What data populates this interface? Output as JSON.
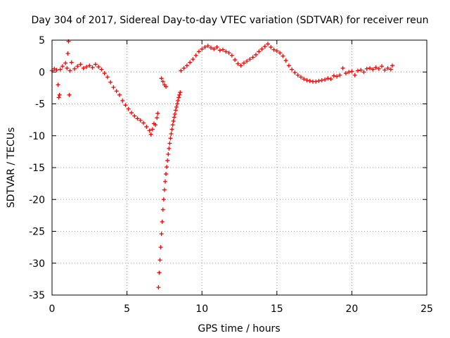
{
  "chart_data": {
    "type": "scatter",
    "title": "Day 304 of 2017, Sidereal Day-to-day VTEC variation (SDTVAR) for receiver reun",
    "xlabel": "GPS time / hours",
    "ylabel": "SDTVAR / TECUs",
    "xlim": [
      0,
      25
    ],
    "ylim": [
      -35,
      5
    ],
    "xticks": [
      0,
      5,
      10,
      15,
      20,
      25
    ],
    "xtick_labels": [
      "0",
      "5",
      "10",
      "15",
      "20",
      "25"
    ],
    "yticks": [
      -35,
      -30,
      -25,
      -20,
      -15,
      -10,
      -5,
      0,
      5
    ],
    "ytick_labels": [
      "-35",
      "-30",
      "-25",
      "-20",
      "-15",
      "-10",
      "-5",
      "0",
      "5"
    ],
    "grid": true,
    "marker": "plus",
    "series": [
      {
        "name": "SDTVAR",
        "color": "#ff0000",
        "points": [
          [
            0.0,
            0.2
          ],
          [
            0.15,
            0.5
          ],
          [
            0.3,
            0.3
          ],
          [
            0.4,
            -2.0
          ],
          [
            0.45,
            -4.0
          ],
          [
            0.5,
            -3.6
          ],
          [
            0.55,
            0.4
          ],
          [
            0.7,
            0.9
          ],
          [
            0.9,
            1.4
          ],
          [
            1.0,
            0.6
          ],
          [
            1.05,
            2.9
          ],
          [
            1.1,
            4.8
          ],
          [
            1.15,
            -3.6
          ],
          [
            1.2,
            0.2
          ],
          [
            1.3,
            1.5
          ],
          [
            1.5,
            0.5
          ],
          [
            1.7,
            0.9
          ],
          [
            1.9,
            1.2
          ],
          [
            2.1,
            0.6
          ],
          [
            2.3,
            0.8
          ],
          [
            2.5,
            1.0
          ],
          [
            2.7,
            0.7
          ],
          [
            2.9,
            1.2
          ],
          [
            3.1,
            0.8
          ],
          [
            3.3,
            0.4
          ],
          [
            3.5,
            -0.2
          ],
          [
            3.7,
            -0.8
          ],
          [
            3.9,
            -1.6
          ],
          [
            4.1,
            -2.4
          ],
          [
            4.3,
            -3.0
          ],
          [
            4.5,
            -3.6
          ],
          [
            4.7,
            -4.5
          ],
          [
            4.9,
            -5.2
          ],
          [
            5.1,
            -5.8
          ],
          [
            5.3,
            -6.4
          ],
          [
            5.5,
            -6.9
          ],
          [
            5.7,
            -7.3
          ],
          [
            5.9,
            -7.6
          ],
          [
            6.1,
            -8.0
          ],
          [
            6.3,
            -8.6
          ],
          [
            6.5,
            -9.2
          ],
          [
            6.6,
            -9.8
          ],
          [
            6.7,
            -9.0
          ],
          [
            6.8,
            -8.1
          ],
          [
            6.9,
            -8.3
          ],
          [
            7.0,
            -7.2
          ],
          [
            7.05,
            -6.5
          ],
          [
            7.1,
            -33.8
          ],
          [
            7.15,
            -31.5
          ],
          [
            7.2,
            -29.5
          ],
          [
            7.25,
            -27.5
          ],
          [
            7.3,
            -25.4
          ],
          [
            7.35,
            -23.5
          ],
          [
            7.4,
            -21.6
          ],
          [
            7.45,
            -20.0
          ],
          [
            7.5,
            -18.5
          ],
          [
            7.55,
            -17.2
          ],
          [
            7.6,
            -16.0
          ],
          [
            7.65,
            -14.9
          ],
          [
            7.7,
            -13.9
          ],
          [
            7.75,
            -12.9
          ],
          [
            7.8,
            -12.0
          ],
          [
            7.85,
            -11.2
          ],
          [
            7.9,
            -10.4
          ],
          [
            7.95,
            -9.7
          ],
          [
            8.0,
            -9.0
          ],
          [
            8.05,
            -8.3
          ],
          [
            8.1,
            -7.7
          ],
          [
            8.15,
            -7.1
          ],
          [
            8.2,
            -6.6
          ],
          [
            8.25,
            -6.0
          ],
          [
            8.3,
            -5.5
          ],
          [
            8.35,
            -5.0
          ],
          [
            8.4,
            -4.5
          ],
          [
            8.45,
            -4.0
          ],
          [
            8.5,
            -3.6
          ],
          [
            8.55,
            -3.2
          ],
          [
            7.3,
            -1.0
          ],
          [
            7.4,
            -1.5
          ],
          [
            7.5,
            -2.0
          ],
          [
            7.6,
            -2.3
          ],
          [
            8.6,
            0.2
          ],
          [
            8.8,
            0.6
          ],
          [
            9.0,
            1.0
          ],
          [
            9.2,
            1.5
          ],
          [
            9.4,
            2.0
          ],
          [
            9.6,
            2.6
          ],
          [
            9.8,
            3.2
          ],
          [
            10.0,
            3.6
          ],
          [
            10.2,
            3.9
          ],
          [
            10.4,
            4.1
          ],
          [
            10.6,
            3.8
          ],
          [
            10.8,
            3.6
          ],
          [
            11.0,
            3.9
          ],
          [
            11.2,
            3.4
          ],
          [
            11.4,
            3.5
          ],
          [
            11.6,
            3.2
          ],
          [
            11.8,
            3.0
          ],
          [
            12.0,
            2.6
          ],
          [
            12.2,
            1.9
          ],
          [
            12.4,
            1.3
          ],
          [
            12.6,
            1.0
          ],
          [
            12.8,
            1.4
          ],
          [
            13.0,
            1.7
          ],
          [
            13.2,
            2.0
          ],
          [
            13.4,
            2.3
          ],
          [
            13.6,
            2.7
          ],
          [
            13.8,
            3.2
          ],
          [
            14.0,
            3.6
          ],
          [
            14.2,
            4.0
          ],
          [
            14.4,
            4.4
          ],
          [
            14.6,
            3.9
          ],
          [
            14.8,
            3.5
          ],
          [
            15.0,
            3.3
          ],
          [
            15.2,
            3.0
          ],
          [
            15.4,
            2.5
          ],
          [
            15.6,
            1.8
          ],
          [
            15.8,
            1.0
          ],
          [
            16.0,
            0.4
          ],
          [
            16.2,
            -0.1
          ],
          [
            16.4,
            -0.5
          ],
          [
            16.6,
            -0.8
          ],
          [
            16.8,
            -1.1
          ],
          [
            17.0,
            -1.3
          ],
          [
            17.2,
            -1.4
          ],
          [
            17.4,
            -1.5
          ],
          [
            17.6,
            -1.5
          ],
          [
            17.8,
            -1.4
          ],
          [
            18.0,
            -1.3
          ],
          [
            18.2,
            -1.2
          ],
          [
            18.4,
            -1.0
          ],
          [
            18.6,
            -1.1
          ],
          [
            18.8,
            -0.6
          ],
          [
            19.0,
            -0.7
          ],
          [
            19.2,
            -0.5
          ],
          [
            19.4,
            0.6
          ],
          [
            19.6,
            -0.2
          ],
          [
            19.8,
            0.0
          ],
          [
            20.0,
            0.1
          ],
          [
            20.2,
            -0.5
          ],
          [
            20.4,
            0.2
          ],
          [
            20.6,
            0.3
          ],
          [
            20.8,
            0.0
          ],
          [
            21.0,
            0.5
          ],
          [
            21.2,
            0.6
          ],
          [
            21.4,
            0.4
          ],
          [
            21.6,
            0.7
          ],
          [
            21.8,
            0.5
          ],
          [
            22.0,
            0.9
          ],
          [
            22.2,
            0.3
          ],
          [
            22.4,
            0.6
          ],
          [
            22.6,
            0.4
          ],
          [
            22.7,
            1.0
          ]
        ]
      }
    ]
  }
}
